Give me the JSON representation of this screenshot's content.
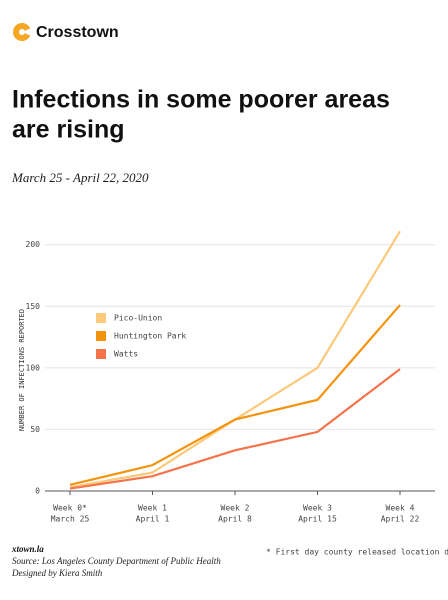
{
  "brand": "Crosstown",
  "chart_data": {
    "type": "line",
    "title": [
      "Infections in some poorer areas",
      "are rising"
    ],
    "subtitle": "March 25 - April 22, 2020",
    "y_label": "NUMBER OF INFECTIONS REPORTED",
    "categories": [
      "Week 0*",
      "Week 1",
      "Week 2",
      "Week 3",
      "Week 4"
    ],
    "dates": [
      "March 25",
      "April 1",
      "April 8",
      "April 15",
      "April 22"
    ],
    "series": [
      {
        "name": "Pico-Union",
        "color": "#fcc97a",
        "values": [
          3,
          15,
          58,
          100,
          211
        ]
      },
      {
        "name": "Huntington Park",
        "color": "#f5930f",
        "values": [
          5,
          21,
          58,
          74,
          151
        ]
      },
      {
        "name": "Watts",
        "color": "#f5734a",
        "values": [
          2,
          12,
          33,
          48,
          99
        ]
      }
    ],
    "ylim": [
      0,
      216
    ],
    "yticks": [
      0,
      50,
      100,
      150,
      200
    ],
    "grid": true
  },
  "footer": {
    "site": "xtown.la",
    "source": "Source: Los Angeles County Department of Public Health",
    "credit": "Designed by Kiera Smith",
    "note": "* First day county released location data"
  }
}
